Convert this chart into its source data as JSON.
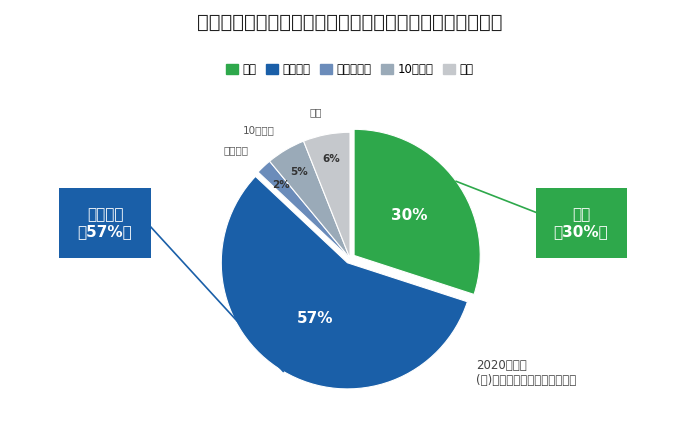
{
  "title": "選考に進む医療機関・企業の数はどのくらいの予定ですか",
  "labels": [
    "１社",
    "２～４社",
    "５～９社",
    "10社以上",
    "未定"
  ],
  "values": [
    30,
    57,
    2,
    5,
    6
  ],
  "colors": [
    "#2ea84b",
    "#1a5fa8",
    "#6b8cba",
    "#9aaab8",
    "#c5c8cc"
  ],
  "explode": [
    0.04,
    0.04,
    0.0,
    0.0,
    0.0
  ],
  "legend_labels": [
    "１社",
    "２～４社",
    "５社～９社",
    "10社以上",
    "未定"
  ],
  "legend_colors": [
    "#2ea84b",
    "#1a5fa8",
    "#6b8cba",
    "#9aaab8",
    "#c5c8cc"
  ],
  "annotation_1_label": "１社\n（30%）",
  "annotation_2_label": "２～４社\n（57%）",
  "source_line1": "2020年３月",
  "source_line2": "(株)ＣＢホールディングス調べ",
  "title_fontsize": 14,
  "background_color": "#ffffff",
  "green_color": "#2ea84b",
  "blue_color": "#1a5fa8",
  "small_labels": [
    "５～９社",
    "10社以上",
    "未定"
  ],
  "pct_labels_inside": [
    "30%",
    "57%"
  ],
  "pct_labels_small": [
    "2%",
    "5%",
    "6%"
  ]
}
